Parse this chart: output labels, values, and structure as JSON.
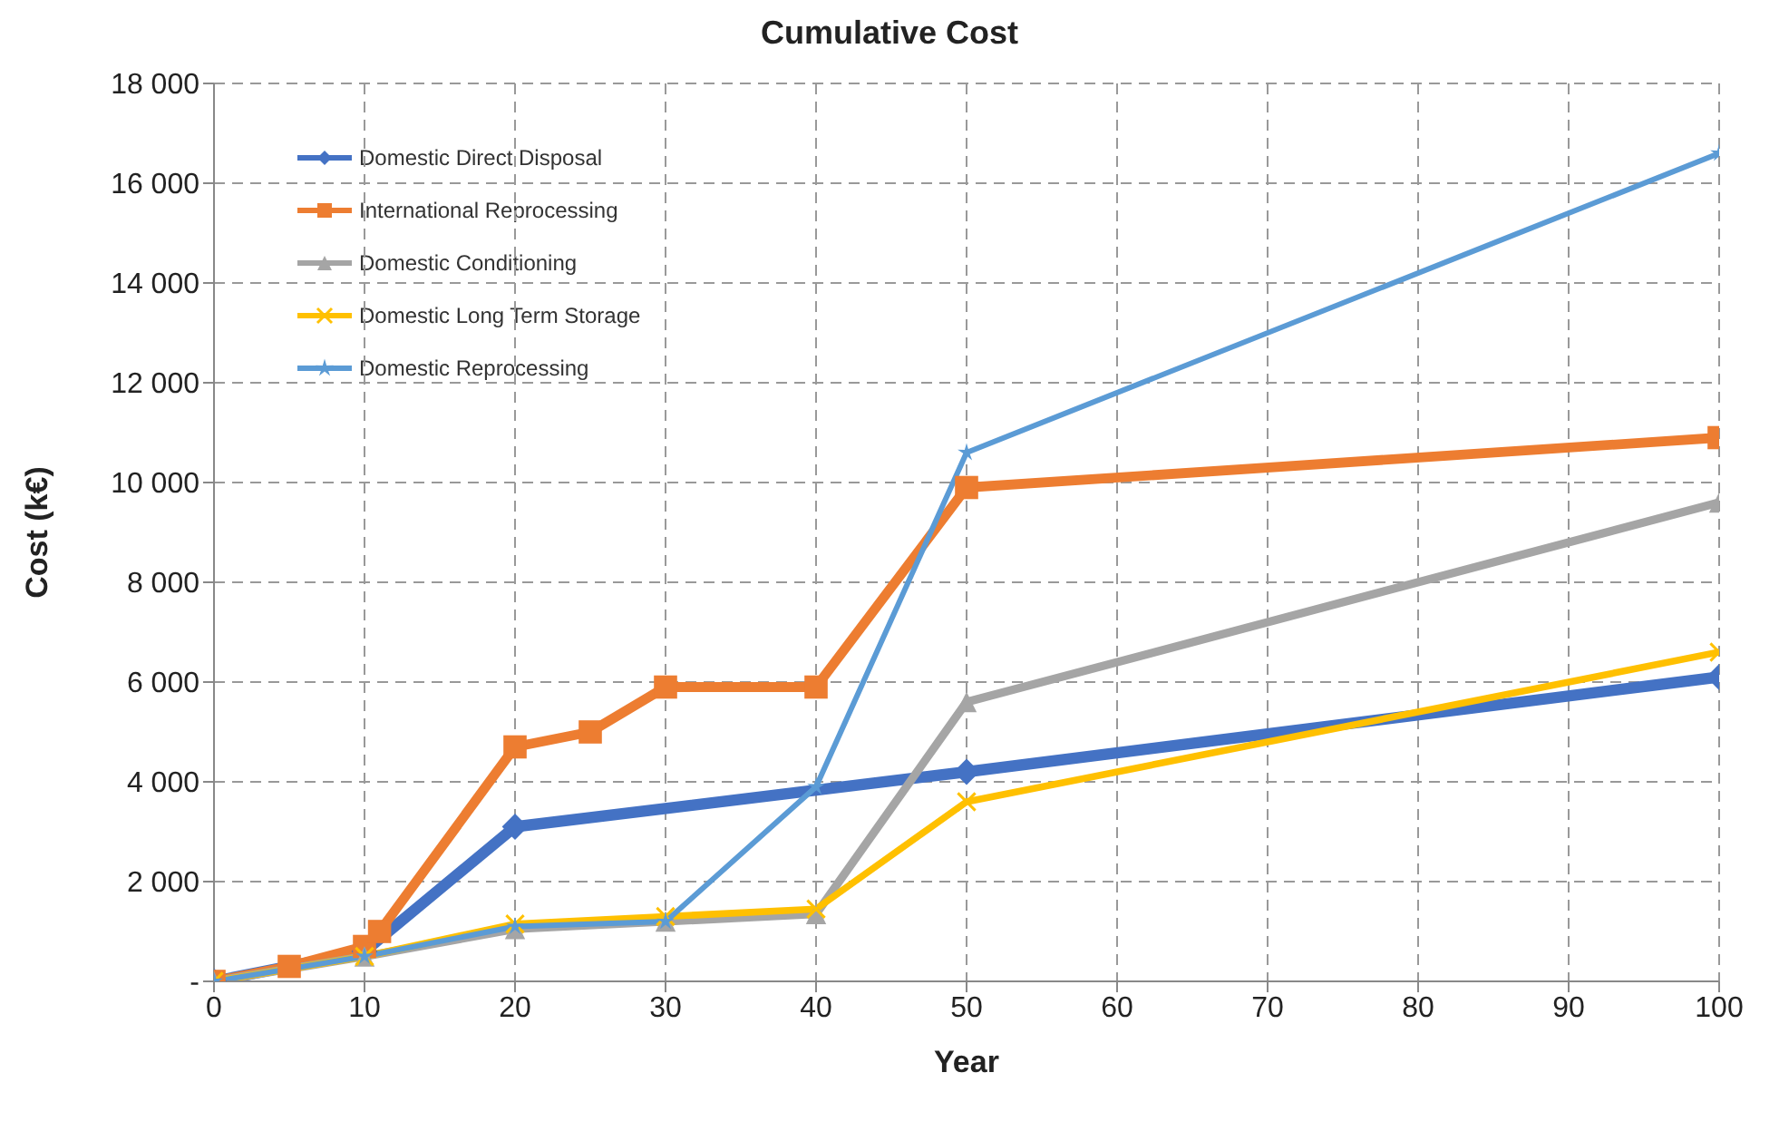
{
  "chart_data": {
    "type": "line",
    "title": "Cumulative Cost",
    "xlabel": "Year",
    "ylabel": "Cost (k€)",
    "xlim": [
      0,
      100
    ],
    "xticks": [
      0,
      10,
      20,
      30,
      40,
      50,
      60,
      70,
      80,
      90,
      100
    ],
    "ylim": [
      0,
      18000
    ],
    "yticks": [
      {
        "value": 0,
        "label": "-"
      },
      {
        "value": 2000,
        "label": "2 000"
      },
      {
        "value": 4000,
        "label": "4 000"
      },
      {
        "value": 6000,
        "label": "6 000"
      },
      {
        "value": 8000,
        "label": "8 000"
      },
      {
        "value": 10000,
        "label": "10 000"
      },
      {
        "value": 12000,
        "label": "12 000"
      },
      {
        "value": 14000,
        "label": "14 000"
      },
      {
        "value": 16000,
        "label": "16 000"
      },
      {
        "value": 18000,
        "label": "18 000"
      }
    ],
    "grid": true,
    "legend": "top left",
    "line_style": "solid",
    "series": [
      {
        "name": "Domestic Direct Disposal",
        "color": "#4472c4",
        "marker": "diamond",
        "x": [
          0,
          10,
          20,
          50,
          100
        ],
        "values": [
          0,
          600,
          3100,
          4200,
          6100
        ]
      },
      {
        "name": "International Reprocessing",
        "color": "#ed7d31",
        "marker": "square",
        "x": [
          0,
          5,
          10,
          11,
          20,
          25,
          30,
          40,
          50,
          100
        ],
        "values": [
          0,
          300,
          700,
          1000,
          4700,
          5000,
          5900,
          5900,
          9900,
          10900
        ]
      },
      {
        "name": "Domestic Conditioning",
        "color": "#a5a5a5",
        "marker": "triangle",
        "x": [
          0,
          10,
          20,
          30,
          40,
          50,
          100
        ],
        "values": [
          0,
          500,
          1050,
          1200,
          1350,
          5600,
          9600
        ]
      },
      {
        "name": "Domestic Long Term Storage",
        "color": "#ffc000",
        "marker": "cross",
        "x": [
          0,
          10,
          20,
          30,
          40,
          50,
          100
        ],
        "values": [
          0,
          500,
          1150,
          1300,
          1450,
          3600,
          6600
        ]
      },
      {
        "name": "Domestic Reprocessing",
        "color": "#5b9bd5",
        "marker": "star",
        "x": [
          0,
          10,
          20,
          30,
          40,
          50,
          100
        ],
        "values": [
          0,
          500,
          1100,
          1200,
          3900,
          10600,
          16600
        ]
      }
    ]
  }
}
